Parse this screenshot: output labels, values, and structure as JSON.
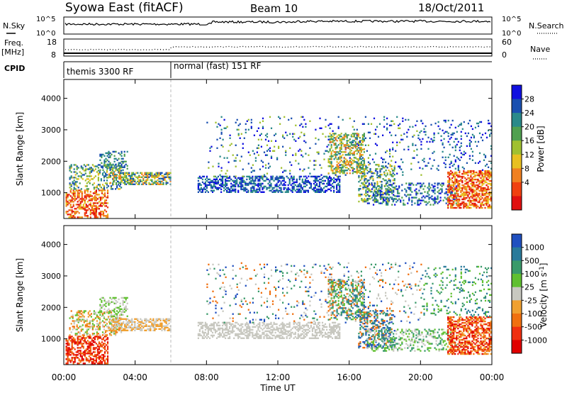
{
  "header": {
    "station": "Syowa East (fitACF)",
    "beam": "Beam 10",
    "date": "18/Oct/2011"
  },
  "strips": {
    "nsky_label": "N.Sky",
    "nsearch_label": "N.Search",
    "noise_ticks": [
      "10^5",
      "10^0"
    ],
    "freq_label": "Freq.",
    "freq_unit": "[MHz]",
    "freq_ticks": [
      "18",
      "8"
    ],
    "nave_label": "Nave",
    "nave_ticks": [
      "60",
      "0"
    ],
    "cpid_label": "CPID",
    "cpid_segments": [
      {
        "label": "themis 3300 RF",
        "start_hour": 0
      },
      {
        "label": "normal (fast) 151 RF",
        "start_hour": 6
      }
    ]
  },
  "chart_data": [
    {
      "type": "heatmap",
      "name": "power",
      "ylabel": "Slant Range [km]",
      "ylim": [
        180,
        4600
      ],
      "yticks": [
        1000,
        2000,
        3000,
        4000
      ],
      "xlim": [
        0,
        24
      ],
      "colorbar_label": "Power [dB]",
      "colorbar_ticks": [
        "4",
        "8",
        "12",
        "16",
        "20",
        "24",
        "28"
      ],
      "colorbar_colors": [
        "#1010e0",
        "#1a50b0",
        "#2a8a8a",
        "#50a050",
        "#a0c030",
        "#e8c020",
        "#f08020",
        "#f04010",
        "#e01010"
      ]
    },
    {
      "type": "heatmap",
      "name": "velocity",
      "ylabel": "Slant Range [km]",
      "ylim": [
        180,
        4600
      ],
      "yticks": [
        1000,
        2000,
        3000,
        4000
      ],
      "xlim": [
        0,
        24
      ],
      "xlabel": "Time UT",
      "xticks": [
        "00:00",
        "04:00",
        "08:00",
        "12:00",
        "16:00",
        "20:00",
        "00:00"
      ],
      "colorbar_label": "Velocity [m s",
      "colorbar_label_sup": "-1",
      "colorbar_label_end": "]",
      "colorbar_ticks": [
        "1000",
        "500",
        "100",
        "25",
        "-25",
        "-100",
        "-500",
        "-1000"
      ],
      "colorbar_colors": [
        "#2050c0",
        "#2a7a9a",
        "#3a9a6a",
        "#60c030",
        "#c8c8c0",
        "#f0a030",
        "#f07010",
        "#f03010",
        "#e00000"
      ]
    }
  ]
}
